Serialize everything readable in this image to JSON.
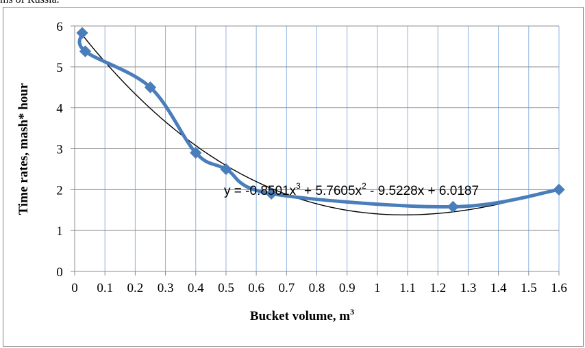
{
  "caption": "ms of Russia.",
  "chart_data": {
    "type": "line",
    "title": "",
    "xlabel": "Bucket volume, ",
    "xlabel_unit": "m",
    "xlabel_unit_sup": "3",
    "ylabel": "Time rates, mash* hour",
    "xlim": [
      0,
      1.6
    ],
    "ylim": [
      0,
      6
    ],
    "x_ticks": [
      "0",
      "0.1",
      "0.2",
      "0.3",
      "0.4",
      "0.5",
      "0.6",
      "0.7",
      "0.8",
      "0.9",
      "1",
      "1.1",
      "1.2",
      "1.3",
      "1.4",
      "1.5",
      "1.6"
    ],
    "y_ticks": [
      "0",
      "1",
      "2",
      "3",
      "4",
      "5",
      "6"
    ],
    "grid": true,
    "series": [
      {
        "x": [
          0.025,
          0.035,
          0.25,
          0.4,
          0.5,
          0.65,
          1.25,
          1.6
        ],
        "y": [
          5.83,
          5.38,
          4.5,
          2.9,
          2.5,
          1.9,
          1.58,
          2.0
        ],
        "color": "#4a7ebb",
        "marker": "diamond"
      }
    ],
    "trendline": {
      "type": "polynomial",
      "color": "#000000",
      "coefficients": [
        -0.8501,
        5.7605,
        -9.5228,
        6.0187
      ],
      "equation": {
        "prefix": "y = -0.8501x",
        "p1": "3",
        "mid1": " + 5.7605x",
        "p2": "2",
        "rest": " - 9.5228x + 6.0187"
      }
    }
  }
}
